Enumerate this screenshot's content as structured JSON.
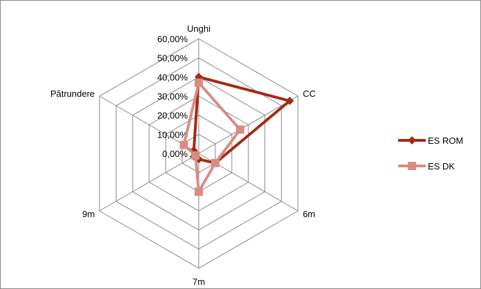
{
  "chart_data": {
    "type": "radar",
    "axes": [
      "Unghi",
      "CC",
      "6m",
      "7m",
      "9m",
      "Pătrundere"
    ],
    "rlim": [
      0,
      60
    ],
    "rticks": [
      "0,00%",
      "10,00%",
      "20,00%",
      "30,00%",
      "40,00%",
      "50,00%",
      "60,00%"
    ],
    "rtick_values": [
      0,
      10,
      20,
      30,
      40,
      50,
      60
    ],
    "grid": true,
    "legend_position": "right",
    "series": [
      {
        "name": "ES ROM",
        "color": "#a52a14",
        "marker": "diamond",
        "values": [
          40,
          55,
          10,
          3,
          3,
          3
        ]
      },
      {
        "name": "ES DK",
        "color": "#d98c84",
        "marker": "square",
        "values": [
          37,
          25,
          10,
          20,
          2,
          9
        ]
      }
    ]
  }
}
